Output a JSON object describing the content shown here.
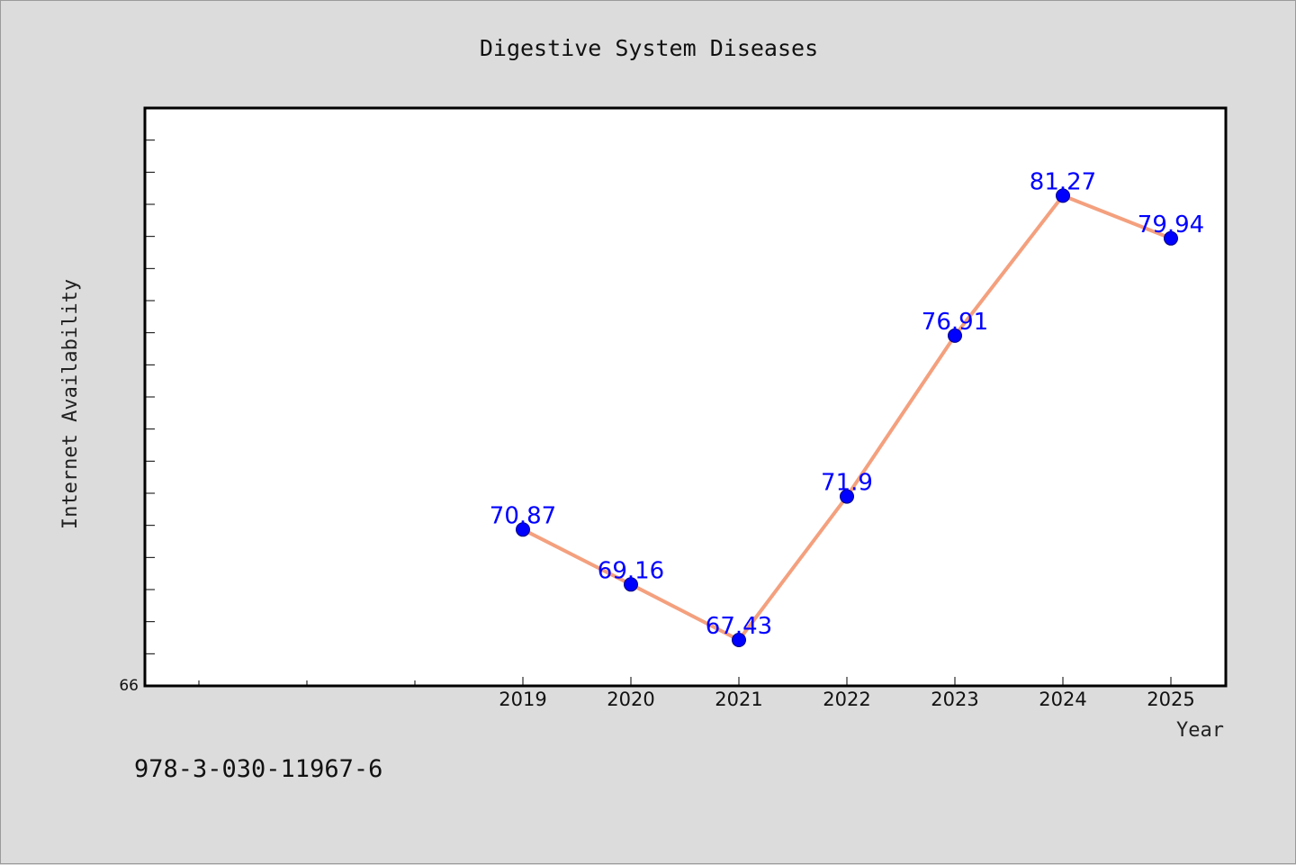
{
  "chart_data": {
    "type": "line",
    "title": "Digestive System Diseases",
    "xlabel": "Year",
    "ylabel": "Internet Availability",
    "x": [
      "2019",
      "2020",
      "2021",
      "2022",
      "2023",
      "2024",
      "2025"
    ],
    "values": [
      70.87,
      69.16,
      67.43,
      71.9,
      76.91,
      81.27,
      79.94
    ],
    "data_labels": [
      "70.87",
      "69.16",
      "67.43",
      "71.9",
      "76.91",
      "81.27",
      "79.94"
    ],
    "ylim": [
      66,
      84
    ],
    "y_tick_label": "66",
    "grid": false,
    "legend": "none",
    "colors": {
      "line": "#f4a07e",
      "marker": "#0000ff",
      "marker_edge": "#000080",
      "data_label": "#0000ff"
    }
  },
  "footer": {
    "isbn": "978-3-030-11967-6"
  }
}
